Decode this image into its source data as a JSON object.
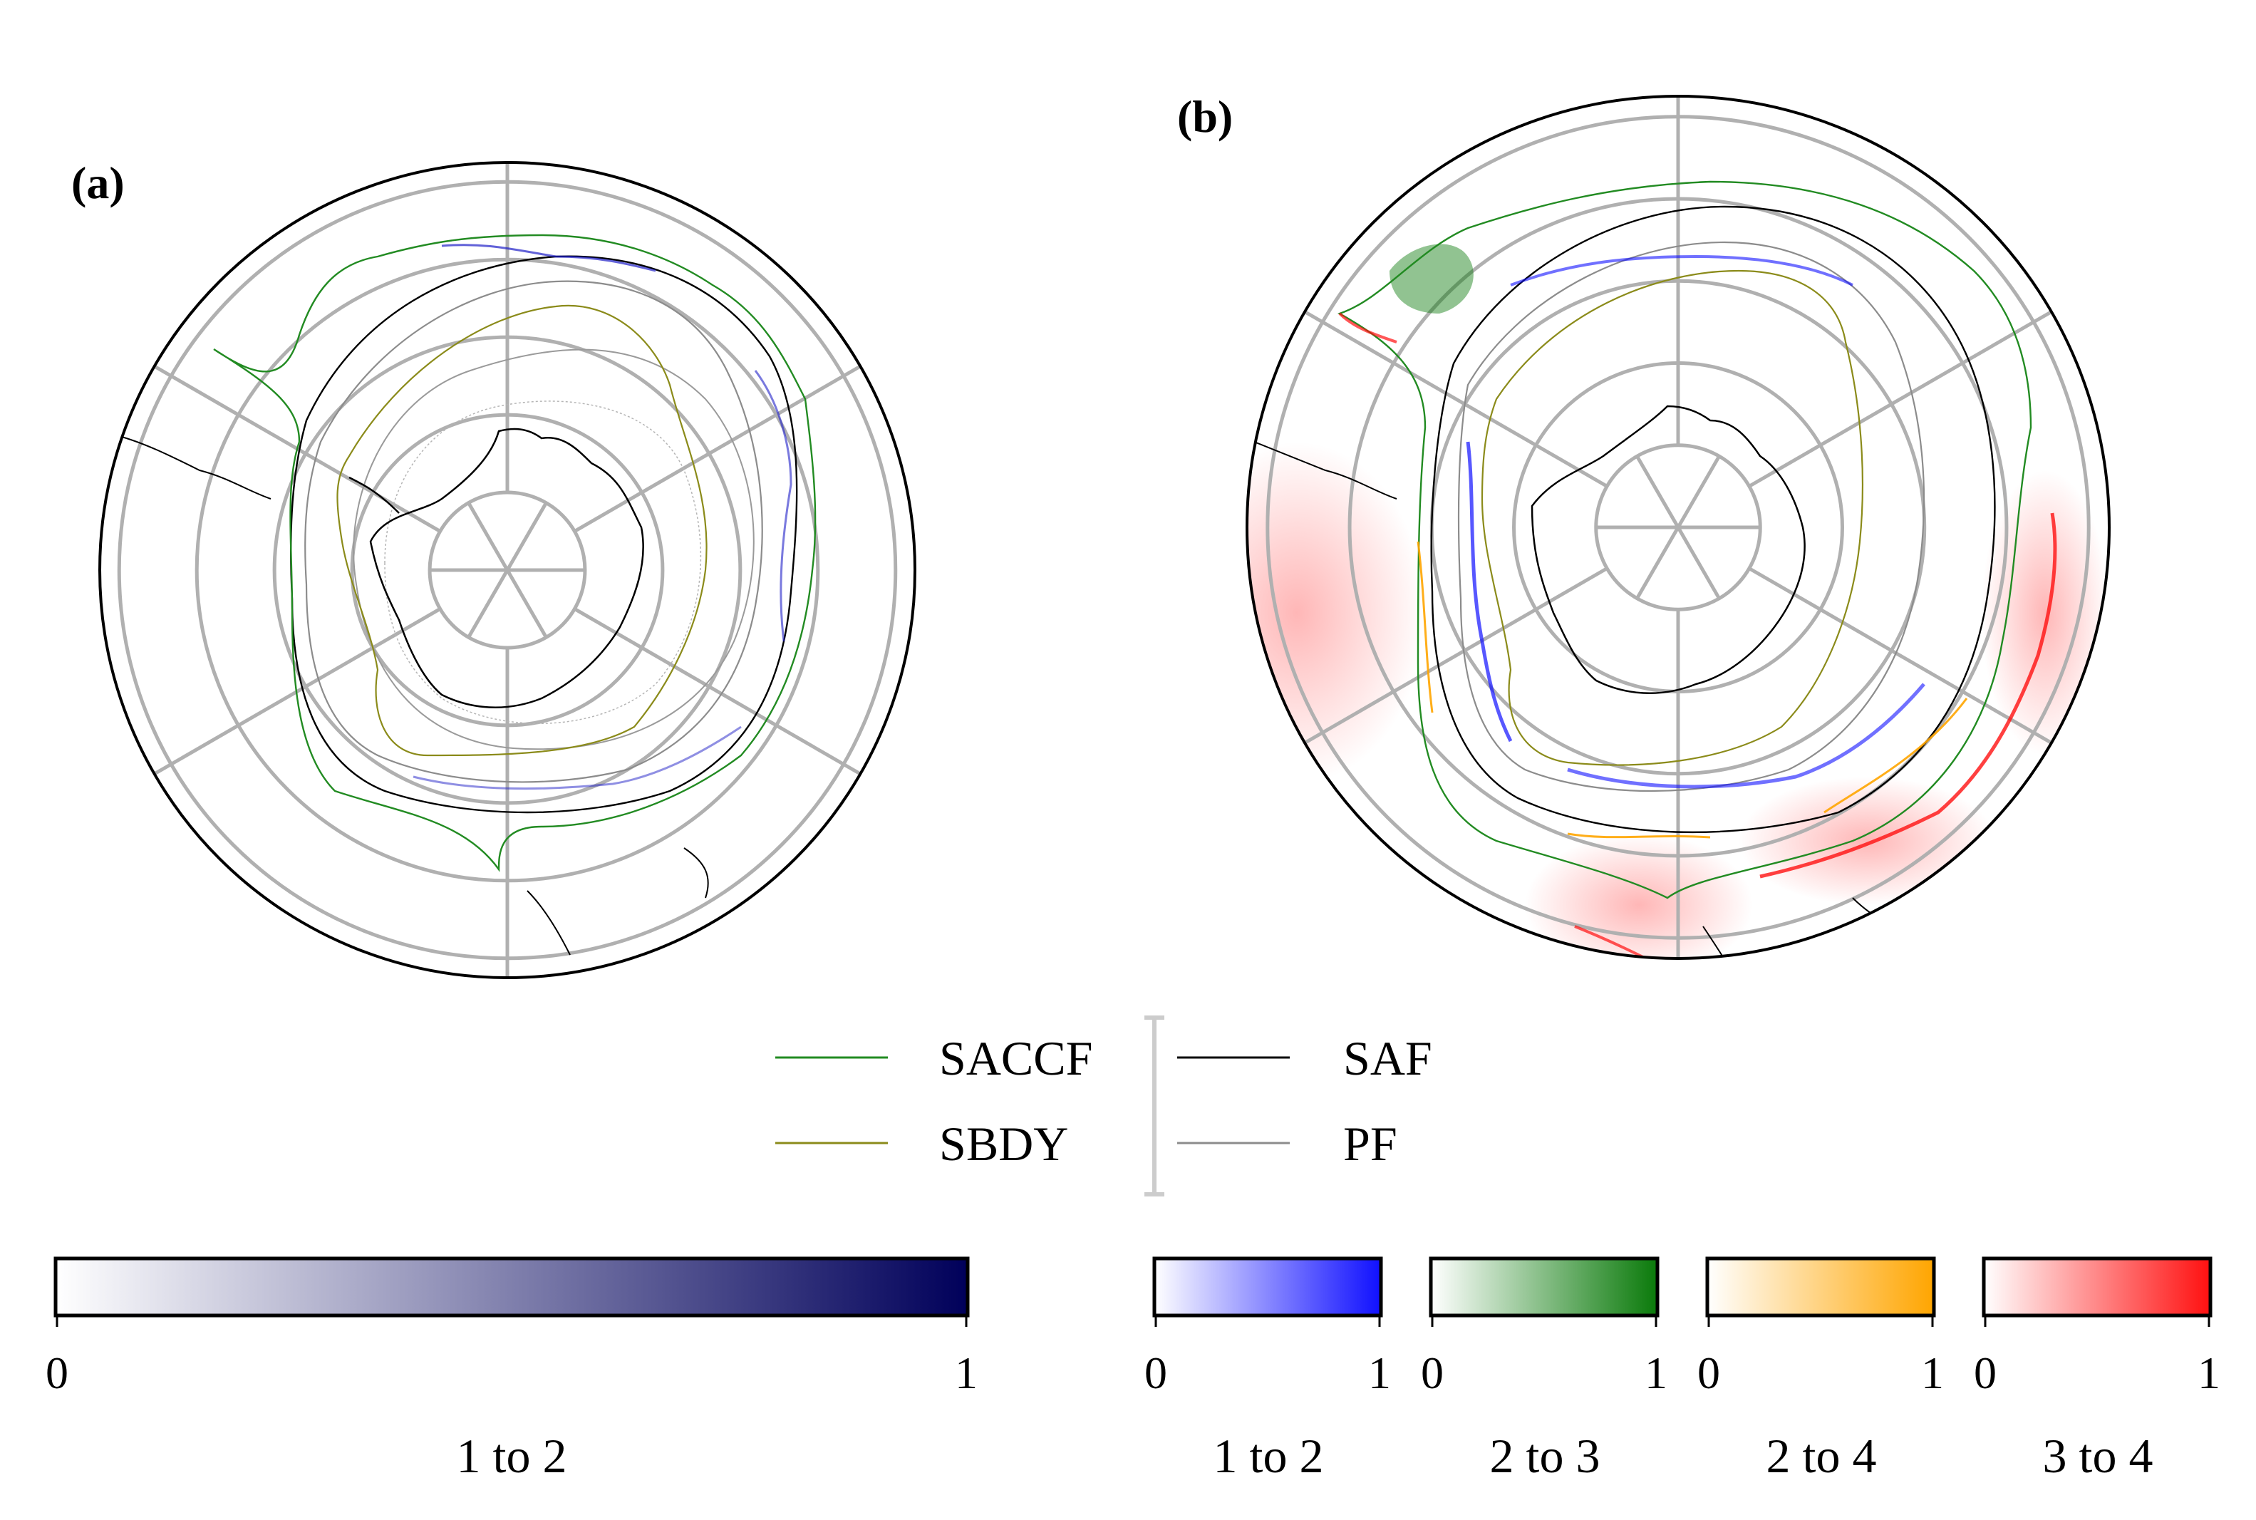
{
  "panels": [
    {
      "label": "(a)"
    },
    {
      "label": "(b)"
    }
  ],
  "legend": {
    "entries": [
      {
        "name": "SACCF",
        "color": "#228B22"
      },
      {
        "name": "SBDY",
        "color": "#8B8B1A"
      },
      {
        "name": "SAF",
        "color": "#000000"
      },
      {
        "name": "PF",
        "color": "#8C8C8C"
      }
    ]
  },
  "colorbars": [
    {
      "title": "1 to 2",
      "min_label": "0",
      "max_label": "1",
      "color": "#00005A"
    },
    {
      "title": "1 to 2",
      "min_label": "0",
      "max_label": "1",
      "color": "#1010FF"
    },
    {
      "title": "2 to 3",
      "min_label": "0",
      "max_label": "1",
      "color": "#0A7A0A"
    },
    {
      "title": "2 to 4",
      "min_label": "0",
      "max_label": "1",
      "color": "#FFA500"
    },
    {
      "title": "3 to 4",
      "min_label": "0",
      "max_label": "1",
      "color": "#FF1010"
    }
  ],
  "colors": {
    "grid": "#B0B0B0",
    "frame": "#000000",
    "coast": "#000000",
    "bathy": "#9A9A9A"
  }
}
